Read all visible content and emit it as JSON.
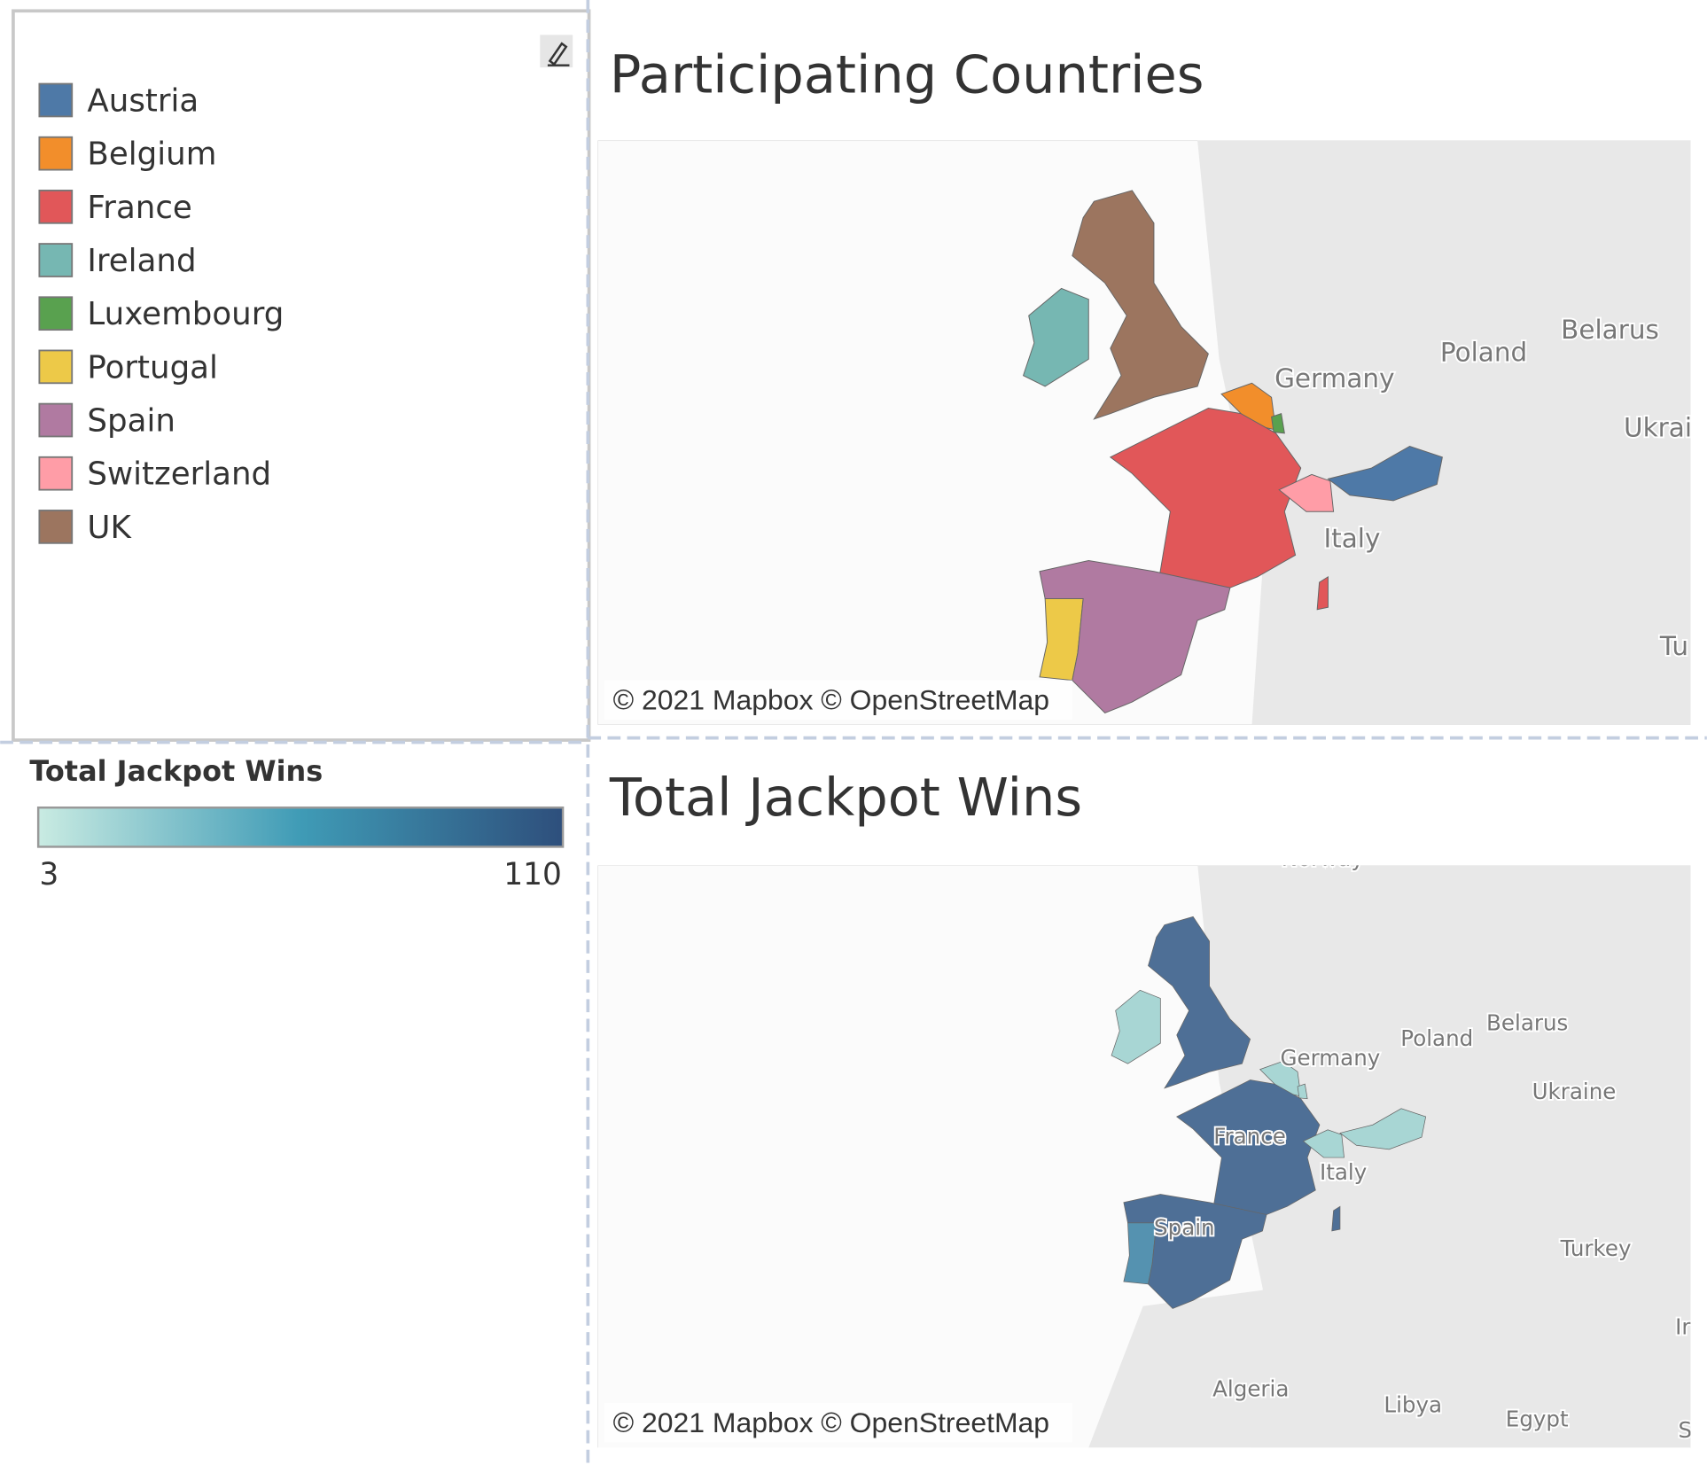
{
  "legend": {
    "items": [
      {
        "label": "Austria",
        "color": "#4e79a7"
      },
      {
        "label": "Belgium",
        "color": "#f28e2b"
      },
      {
        "label": "France",
        "color": "#e15759"
      },
      {
        "label": "Ireland",
        "color": "#76b7b2"
      },
      {
        "label": "Luxembourg",
        "color": "#59a14f"
      },
      {
        "label": "Portugal",
        "color": "#edc948"
      },
      {
        "label": "Spain",
        "color": "#b07aa1"
      },
      {
        "label": "Switzerland",
        "color": "#ff9da7"
      },
      {
        "label": "UK",
        "color": "#9c755f"
      }
    ]
  },
  "color_legend": {
    "title": "Total Jackpot Wins",
    "min": 3,
    "max": 110,
    "gradient": [
      "#c9ebe2",
      "#3f9bb6",
      "#2e4f7c"
    ]
  },
  "maps": [
    {
      "title": "Participating Countries",
      "labels": [
        "Germany",
        "Poland",
        "Belarus",
        "Ukrai",
        "Italy",
        "Tu"
      ],
      "attribution": "© 2021 Mapbox © OpenStreetMap"
    },
    {
      "title": "Total Jackpot Wins",
      "labels": [
        "Norway",
        "Belarus",
        "Poland",
        "Germany",
        "Ukraine",
        "France",
        "Italy",
        "Spain",
        "Turkey",
        "Algeria",
        "Libya",
        "Egypt",
        "Ir",
        "S"
      ],
      "attribution": "© 2021 Mapbox © OpenStreetMap"
    }
  ]
}
